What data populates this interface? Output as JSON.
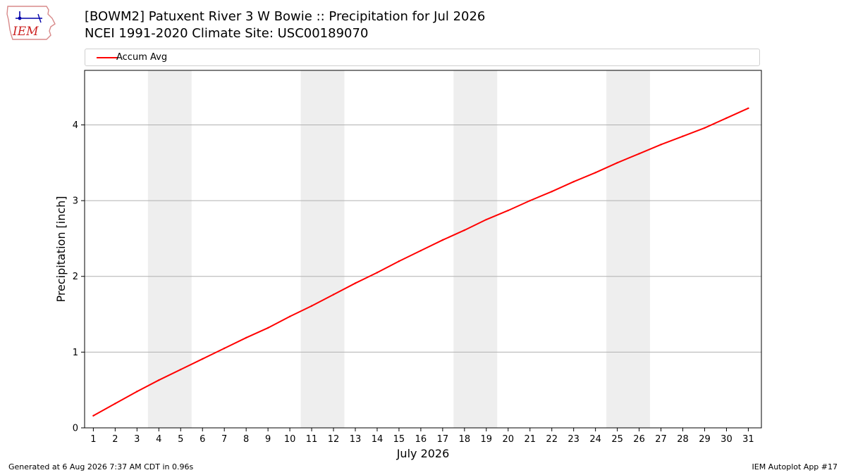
{
  "header": {
    "logo_text": "IEM",
    "title_line1": "[BOWM2] Patuxent River 3 W Bowie :: Precipitation for Jul 2026",
    "title_line2": "NCEI 1991-2020 Climate Site: USC00189070"
  },
  "footer": {
    "generated": "Generated at 6 Aug 2026 7:37 AM CDT in 0.96s",
    "app": "IEM Autoplot App #17"
  },
  "colors": {
    "series": "#ff0000",
    "weekend_band": "#eeeeee",
    "grid": "#b0b0b0",
    "logo": "#cc2222"
  },
  "chart_data": {
    "type": "line",
    "title": "[BOWM2] Patuxent River 3 W Bowie :: Precipitation for Jul 2026",
    "subtitle": "NCEI 1991-2020 Climate Site: USC00189070",
    "xlabel": "July 2026",
    "ylabel": "Precipitation [inch]",
    "xlim": [
      0.6,
      31.6
    ],
    "ylim": [
      0,
      4.72
    ],
    "x_ticks": [
      1,
      2,
      3,
      4,
      5,
      6,
      7,
      8,
      9,
      10,
      11,
      12,
      13,
      14,
      15,
      16,
      17,
      18,
      19,
      20,
      21,
      22,
      23,
      24,
      25,
      26,
      27,
      28,
      29,
      30,
      31
    ],
    "y_ticks": [
      0,
      1,
      2,
      3,
      4
    ],
    "grid": "horizontal",
    "legend_position": "top",
    "weekend_bands": [
      [
        3.5,
        5.5
      ],
      [
        10.5,
        12.5
      ],
      [
        17.5,
        19.5
      ],
      [
        24.5,
        26.5
      ]
    ],
    "series": [
      {
        "name": "Accum Avg",
        "x": [
          1,
          2,
          3,
          4,
          5,
          6,
          7,
          8,
          9,
          10,
          11,
          12,
          13,
          14,
          15,
          16,
          17,
          18,
          19,
          20,
          21,
          22,
          23,
          24,
          25,
          26,
          27,
          28,
          29,
          30,
          31
        ],
        "values": [
          0.16,
          0.32,
          0.48,
          0.63,
          0.77,
          0.91,
          1.05,
          1.19,
          1.32,
          1.47,
          1.61,
          1.76,
          1.91,
          2.05,
          2.2,
          2.34,
          2.48,
          2.61,
          2.75,
          2.87,
          3.0,
          3.12,
          3.25,
          3.37,
          3.5,
          3.62,
          3.74,
          3.85,
          3.96,
          4.09,
          4.22
        ]
      }
    ]
  }
}
